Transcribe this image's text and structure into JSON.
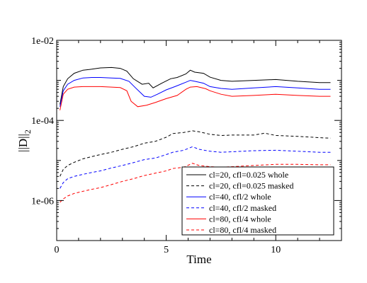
{
  "chart_data": {
    "type": "line",
    "title": "",
    "xlabel": "Time",
    "ylabel": "||D||",
    "ylabel_subscript": "2",
    "xlim": [
      0,
      13
    ],
    "ylim": [
      1e-07,
      0.01
    ],
    "yscale": "log",
    "x_ticks": [
      0,
      5,
      10
    ],
    "x_tick_labels": [
      "0",
      "5",
      "10"
    ],
    "y_ticks": [
      1e-06,
      0.0001,
      0.01
    ],
    "y_tick_labels": [
      "1e-06",
      "1e-04",
      "1e-02"
    ],
    "grid": false,
    "legend_position": "bottom-right",
    "series": [
      {
        "name": "cl=20, cfl=0.025 whole",
        "color": "#000000",
        "dash": "solid",
        "x": [
          0.15,
          0.3,
          0.5,
          0.8,
          1.2,
          1.6,
          2.0,
          2.5,
          2.9,
          3.2,
          3.5,
          3.9,
          4.2,
          4.4,
          4.8,
          5.2,
          5.5,
          5.9,
          6.1,
          6.3,
          6.7,
          7.0,
          7.5,
          8.0,
          9.0,
          10.0,
          11.0,
          12.0,
          12.5
        ],
        "y": [
          0.00025,
          0.0007,
          0.0011,
          0.0015,
          0.0018,
          0.0019,
          0.00205,
          0.0021,
          0.002,
          0.0017,
          0.0011,
          0.0008,
          0.00085,
          0.00065,
          0.00085,
          0.0011,
          0.00118,
          0.00145,
          0.0018,
          0.0016,
          0.0015,
          0.0012,
          0.001,
          0.00095,
          0.001,
          0.00105,
          0.00095,
          0.00088,
          0.00088
        ]
      },
      {
        "name": "cl=20, cfl=0.025 masked",
        "color": "#000000",
        "dash": "dashed",
        "x": [
          0.15,
          0.3,
          0.5,
          0.8,
          1.2,
          1.6,
          2.0,
          2.5,
          3.0,
          3.5,
          4.0,
          4.5,
          5.0,
          5.3,
          5.8,
          6.2,
          6.5,
          7.0,
          7.5,
          8.0,
          9.0,
          9.5,
          10.0,
          11.0,
          12.0,
          12.5
        ],
        "y": [
          4e-06,
          6e-06,
          7.5e-06,
          9e-06,
          1.1e-05,
          1.25e-05,
          1.4e-05,
          1.6e-05,
          1.9e-05,
          2.2e-05,
          2.7e-05,
          3e-05,
          3.8e-05,
          4.7e-05,
          5e-05,
          5.5e-05,
          5.2e-05,
          4.5e-05,
          4.2e-05,
          4.3e-05,
          4.3e-05,
          4.8e-05,
          4.2e-05,
          4e-05,
          3.7e-05,
          3.6e-05
        ]
      },
      {
        "name": "cl=40, cfl/2 whole",
        "color": "#0000ff",
        "dash": "solid",
        "x": [
          0.15,
          0.3,
          0.5,
          0.8,
          1.2,
          1.6,
          2.0,
          2.5,
          2.9,
          3.3,
          3.6,
          4.0,
          4.3,
          4.6,
          5.0,
          5.4,
          5.9,
          6.1,
          6.3,
          6.7,
          7.0,
          7.5,
          8.0,
          9.0,
          10.0,
          11.0,
          12.0,
          12.5
        ],
        "y": [
          0.00022,
          0.00055,
          0.0008,
          0.001,
          0.00115,
          0.00118,
          0.00118,
          0.00115,
          0.00112,
          0.00095,
          0.00065,
          0.0004,
          0.00038,
          0.00045,
          0.00058,
          0.0007,
          0.0009,
          0.001,
          0.00095,
          0.00085,
          0.0007,
          0.00063,
          0.0006,
          0.00065,
          0.0007,
          0.00065,
          0.0006,
          0.0006
        ]
      },
      {
        "name": "cl=40, cfl/2 masked",
        "color": "#0000ff",
        "dash": "dashed",
        "x": [
          0.15,
          0.3,
          0.5,
          0.8,
          1.2,
          1.6,
          2.0,
          2.5,
          3.0,
          3.5,
          4.0,
          4.5,
          5.0,
          5.3,
          5.8,
          6.2,
          6.5,
          7.0,
          7.5,
          8.0,
          9.0,
          10.0,
          11.0,
          12.0,
          12.5
        ],
        "y": [
          2e-06,
          2.8e-06,
          3.5e-06,
          4e-06,
          4.5e-06,
          5e-06,
          5.5e-06,
          6.5e-06,
          7.5e-06,
          8.8e-06,
          1.05e-05,
          1.15e-05,
          1.4e-05,
          1.6e-05,
          1.8e-05,
          2.2e-05,
          1.9e-05,
          1.7e-05,
          1.6e-05,
          1.65e-05,
          1.75e-05,
          1.8e-05,
          1.7e-05,
          1.6e-05,
          1.6e-05
        ]
      },
      {
        "name": "cl=80, cfl/4 whole",
        "color": "#ff0000",
        "dash": "solid",
        "x": [
          0.15,
          0.3,
          0.5,
          0.8,
          1.2,
          1.6,
          2.0,
          2.5,
          2.9,
          3.2,
          3.4,
          3.7,
          4.1,
          4.5,
          5.0,
          5.5,
          5.9,
          6.1,
          6.4,
          6.8,
          7.0,
          7.5,
          8.0,
          9.0,
          10.0,
          11.0,
          12.0,
          12.5
        ],
        "y": [
          0.00018,
          0.00045,
          0.0006,
          0.00068,
          0.0007,
          0.0007,
          0.0007,
          0.00068,
          0.00066,
          0.00055,
          0.0003,
          0.00022,
          0.00024,
          0.00028,
          0.00035,
          0.00042,
          0.0006,
          0.00068,
          0.0007,
          0.00062,
          0.00055,
          0.00045,
          0.0004,
          0.00042,
          0.00045,
          0.00042,
          0.0004,
          0.0004
        ]
      },
      {
        "name": "cl=80, cfl/4 masked",
        "color": "#ff0000",
        "dash": "dashed",
        "x": [
          0.15,
          0.3,
          0.5,
          0.8,
          1.2,
          1.6,
          2.0,
          2.5,
          3.0,
          3.5,
          4.0,
          4.5,
          5.0,
          5.3,
          5.8,
          6.2,
          6.5,
          7.0,
          7.5,
          8.0,
          9.0,
          10.0,
          11.0,
          12.0,
          12.5
        ],
        "y": [
          9e-07,
          1.1e-06,
          1.3e-06,
          1.5e-06,
          1.7e-06,
          1.9e-06,
          2.1e-06,
          2.5e-06,
          3e-06,
          3.5e-06,
          4.2e-06,
          4.8e-06,
          5.5e-06,
          6.3e-06,
          6.8e-06,
          8.5e-06,
          7.5e-06,
          7e-06,
          6.8e-06,
          7e-06,
          7.5e-06,
          8e-06,
          8e-06,
          7.8e-06,
          7.8e-06
        ]
      }
    ]
  }
}
